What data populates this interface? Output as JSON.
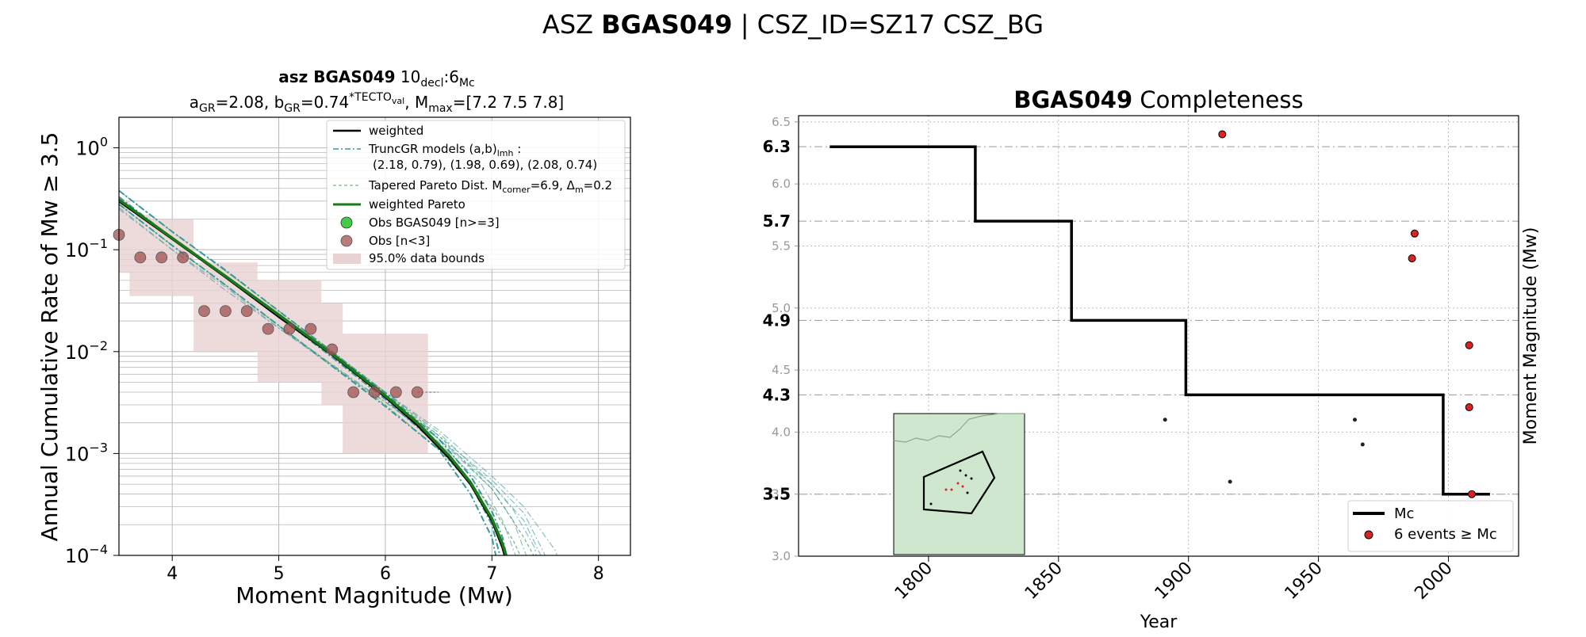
{
  "suptitle": {
    "prefix": "ASZ ",
    "bold": "BGAS049",
    "suffix": " | CSZ_ID=SZ17 CSZ_BG"
  },
  "colors": {
    "weighted": "#000000",
    "truncgr": "#3a9999",
    "tapered": "#66bb77",
    "weighted_pareto": "#1a7a1a",
    "obs_main": "#44cc44",
    "obs_few": "#a05050",
    "bounds": "#e8d2d2",
    "mc_line": "#000000",
    "events": "#dd2222",
    "inset_bg": "#cfe6cf"
  },
  "chart_data": [
    {
      "type": "line",
      "title_line1": {
        "bold": "asz BGAS049",
        "rest": "  10",
        "sub1": "decl",
        "mid": ":6",
        "sub2": "Mc"
      },
      "title_line2": {
        "a": "a",
        "a_sub": "GR",
        "a_val": "=2.08,  b",
        "b_sub": "GR",
        "b_val": "=0.74",
        "b_sup": "*TECTO",
        "b_sup_sub": "val",
        "m": ", M",
        "m_sub": "max",
        "m_val": "=[7.2 7.5 7.8]"
      },
      "xlabel": "Moment Magnitude (Mw)",
      "ylabel": "Annual Cumulative Rate of Mw ≥ 3.5",
      "xlim": [
        3.5,
        8.3
      ],
      "ylim_log10": [
        -4,
        0.3
      ],
      "yscale": "log",
      "grid": true,
      "xticks": [
        "4",
        "5",
        "6",
        "7",
        "8"
      ],
      "yticks": [
        {
          "base": "10",
          "exp": "0"
        },
        {
          "base": "10",
          "exp": "−1"
        },
        {
          "base": "10",
          "exp": "−2"
        },
        {
          "base": "10",
          "exp": "−3"
        },
        {
          "base": "10",
          "exp": "−4"
        }
      ],
      "legend_position": "top-right",
      "legend": {
        "weighted": "weighted",
        "truncgr_l1": "TruncGR models (a,b)",
        "truncgr_sub": "lmh",
        "truncgr_colon": " :",
        "truncgr_l2": "(2.18, 0.79), (1.98, 0.69), (2.08, 0.74)",
        "tapered_a": "Tapered Pareto Dist. M",
        "tapered_sub1": "corner",
        "tapered_b": "=6.9, Δ",
        "tapered_sub2": "m",
        "tapered_c": "=0.2",
        "weighted_pareto": "weighted Pareto",
        "obs_main": "Obs BGAS049 [n>=3]",
        "obs_few": "Obs [n<3]",
        "bounds": "95.0% data bounds"
      },
      "observations": {
        "mag": [
          3.5,
          3.7,
          3.9,
          4.1,
          4.3,
          4.5,
          4.7,
          4.9,
          5.1,
          5.3,
          5.5,
          5.7,
          5.9,
          6.1,
          6.3
        ],
        "rate": [
          0.14,
          0.084,
          0.084,
          0.084,
          0.025,
          0.025,
          0.025,
          0.0167,
          0.0167,
          0.0167,
          0.0105,
          0.004,
          0.004,
          0.004,
          0.004
        ]
      },
      "bounds_95": {
        "mag": [
          3.5,
          3.7,
          3.9,
          4.1,
          4.3,
          4.5,
          4.7,
          4.9,
          5.1,
          5.3,
          5.5,
          5.7,
          5.9,
          6.1,
          6.3
        ],
        "upper": [
          0.3,
          0.22,
          0.2,
          0.2,
          0.075,
          0.075,
          0.075,
          0.05,
          0.05,
          0.05,
          0.03,
          0.015,
          0.015,
          0.015,
          0.015
        ],
        "lower": [
          0.06,
          0.035,
          0.035,
          0.035,
          0.01,
          0.01,
          0.01,
          0.005,
          0.005,
          0.005,
          0.003,
          0.001,
          0.001,
          0.001,
          0.001
        ]
      },
      "weighted": {
        "mag": [
          3.5,
          4.0,
          4.5,
          5.0,
          5.5,
          6.0,
          6.3,
          6.6,
          6.8,
          7.0,
          7.1,
          7.2,
          7.3
        ],
        "rate": [
          0.3,
          0.128,
          0.054,
          0.022,
          0.0093,
          0.0036,
          0.0019,
          0.0009,
          0.0005,
          0.00022,
          0.00012,
          5e-05,
          1e-05
        ]
      },
      "weighted_pareto": {
        "mag": [
          3.5,
          4.0,
          4.5,
          5.0,
          5.5,
          6.0,
          6.3,
          6.6,
          6.8,
          7.0,
          7.1,
          7.2,
          7.27
        ],
        "rate": [
          0.31,
          0.13,
          0.055,
          0.023,
          0.0095,
          0.0037,
          0.002,
          0.00095,
          0.00052,
          0.00023,
          0.00013,
          6e-05,
          0.0001
        ]
      },
      "truncgr_models": [
        {
          "mag": [
            3.5,
            4.0,
            4.5,
            5.0,
            5.5,
            6.0,
            6.5,
            6.8,
            7.0,
            7.1,
            7.2
          ],
          "rate": [
            0.38,
            0.15,
            0.063,
            0.025,
            0.01,
            0.0039,
            0.0014,
            0.0006,
            0.00027,
            0.00015,
            5e-05
          ]
        },
        {
          "mag": [
            3.5,
            4.0,
            4.5,
            5.0,
            5.5,
            6.0,
            6.5,
            7.0,
            7.2,
            7.4,
            7.5
          ],
          "rate": [
            0.38,
            0.15,
            0.062,
            0.025,
            0.01,
            0.004,
            0.0016,
            0.0005,
            0.00028,
            0.00012,
            4e-05
          ]
        },
        {
          "mag": [
            3.5,
            4.0,
            4.5,
            5.0,
            5.5,
            6.0,
            6.5,
            7.0,
            7.3,
            7.6,
            7.7
          ],
          "rate": [
            0.38,
            0.15,
            0.062,
            0.025,
            0.01,
            0.004,
            0.0017,
            0.0006,
            0.0003,
            0.00011,
            4e-05
          ]
        },
        {
          "mag": [
            3.5,
            4.0,
            4.5,
            5.0,
            5.5,
            6.0,
            6.5,
            6.8,
            7.0,
            7.1
          ],
          "rate": [
            0.28,
            0.11,
            0.045,
            0.018,
            0.0072,
            0.0029,
            0.0011,
            0.0004,
            0.00015,
            5e-05
          ]
        },
        {
          "mag": [
            3.5,
            4.0,
            4.5,
            5.0,
            5.5,
            6.0,
            6.5,
            6.9,
            7.1,
            7.3
          ],
          "rate": [
            0.26,
            0.1,
            0.043,
            0.017,
            0.0075,
            0.0032,
            0.0013,
            0.0005,
            0.00022,
            6e-05
          ]
        },
        {
          "mag": [
            3.5,
            4.0,
            4.5,
            5.0,
            5.5,
            6.0,
            6.5,
            7.0,
            7.3,
            7.6
          ],
          "rate": [
            0.25,
            0.1,
            0.04,
            0.017,
            0.0072,
            0.0032,
            0.0014,
            0.0005,
            0.00022,
            5e-05
          ]
        },
        {
          "mag": [
            3.5,
            4.0,
            4.5,
            5.0,
            5.5,
            6.0,
            6.5,
            6.8,
            7.0,
            7.1
          ],
          "rate": [
            0.33,
            0.13,
            0.055,
            0.022,
            0.0088,
            0.0034,
            0.0012,
            0.0005,
            0.0002,
            8e-05
          ]
        },
        {
          "mag": [
            3.5,
            4.0,
            4.5,
            5.0,
            5.5,
            6.0,
            6.5,
            7.0,
            7.2,
            7.4
          ],
          "rate": [
            0.33,
            0.13,
            0.055,
            0.022,
            0.0088,
            0.0035,
            0.0014,
            0.00045,
            0.00022,
            6e-05
          ]
        },
        {
          "mag": [
            3.5,
            4.0,
            4.5,
            5.0,
            5.5,
            6.0,
            6.5,
            7.0,
            7.3,
            7.5
          ],
          "rate": [
            0.33,
            0.13,
            0.055,
            0.022,
            0.0088,
            0.0035,
            0.0015,
            0.00055,
            0.00026,
            0.0001
          ]
        }
      ],
      "tapered_models": [
        {
          "mag": [
            3.5,
            4.0,
            4.5,
            5.0,
            5.5,
            6.0,
            6.5,
            7.0,
            7.3,
            7.6
          ],
          "rate": [
            0.38,
            0.15,
            0.062,
            0.025,
            0.01,
            0.004,
            0.0015,
            0.00045,
            0.00015,
            4e-05
          ]
        },
        {
          "mag": [
            3.5,
            4.0,
            4.5,
            5.0,
            5.5,
            6.0,
            6.5,
            7.0,
            7.2,
            7.4
          ],
          "rate": [
            0.28,
            0.11,
            0.045,
            0.018,
            0.0074,
            0.003,
            0.0011,
            0.0003,
            0.00014,
            5e-05
          ]
        }
      ],
      "mc_marker": {
        "mag": [
          6.3,
          6.5
        ],
        "rate": [
          0.004,
          0.004
        ]
      }
    },
    {
      "type": "line",
      "title_bold": "BGAS049",
      "title_rest": " Completeness",
      "xlabel": "Year",
      "ylabel": "Moment Magnitude (Mw)",
      "xlim": [
        1750,
        2027
      ],
      "ylim": [
        3.0,
        6.55
      ],
      "grid": true,
      "xticks": [
        "1800",
        "1850",
        "1900",
        "1950",
        "2000"
      ],
      "yticks_minor": [
        "3.0",
        "3.5",
        "4.0",
        "4.5",
        "5.0",
        "5.5",
        "6.0",
        "6.5"
      ],
      "yticks_major": [
        "3.5",
        "4.3",
        "4.9",
        "5.7",
        "6.3"
      ],
      "mc_steps": {
        "x": [
          1762,
          1818,
          1818,
          1855,
          1855,
          1899,
          1899,
          1998,
          1998,
          2016
        ],
        "y": [
          6.3,
          6.3,
          5.7,
          5.7,
          4.9,
          4.9,
          4.3,
          4.3,
          3.5,
          3.5
        ]
      },
      "events_above_mc": {
        "year": [
          1913,
          1986,
          1987,
          2008,
          2008,
          2009
        ],
        "mag": [
          6.4,
          5.4,
          5.6,
          4.7,
          4.2,
          3.5
        ]
      },
      "events_below_mc": {
        "year": [
          1891,
          1916,
          1964,
          1967
        ],
        "mag": [
          4.1,
          3.6,
          4.1,
          3.9
        ]
      },
      "legend_position": "bottom-right",
      "legend": {
        "mc": "Mc",
        "events": "6 events ≥ Mc"
      }
    }
  ]
}
